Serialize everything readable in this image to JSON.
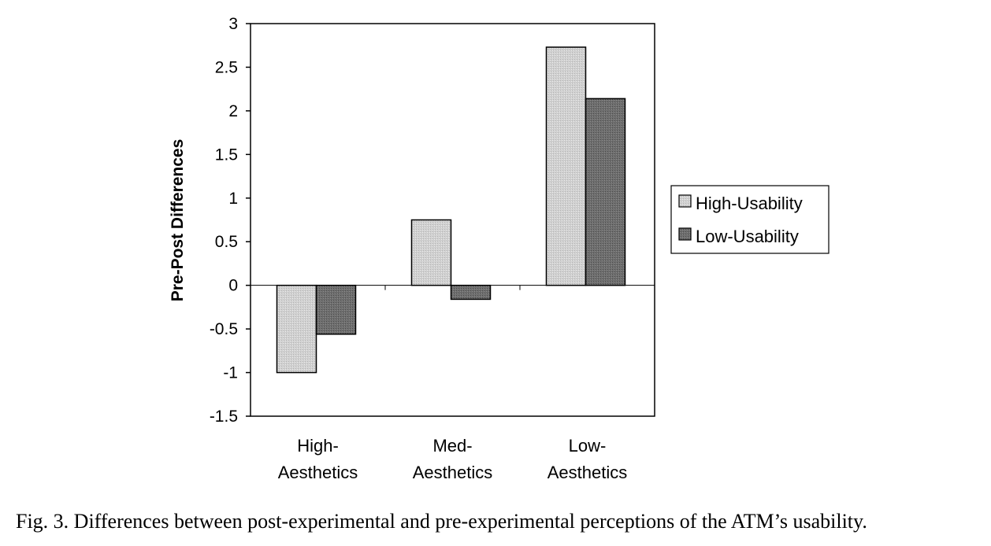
{
  "caption": "Fig. 3. Differences between post-experimental and pre-experimental perceptions of the ATM’s usability.",
  "chart_data": {
    "type": "bar",
    "categories": [
      [
        "High-",
        "Aesthetics"
      ],
      [
        "Med-",
        "Aesthetics"
      ],
      [
        "Low-",
        "Aesthetics"
      ]
    ],
    "series": [
      {
        "name": "High-Usability",
        "values": [
          -1.0,
          0.75,
          2.73
        ],
        "color": "#d0d0d0"
      },
      {
        "name": "Low-Usability",
        "values": [
          -0.56,
          -0.16,
          2.14
        ],
        "color": "#6e6e6e"
      }
    ],
    "ylabel": "Pre-Post Differences",
    "xlabel": "",
    "ylim": [
      -1.5,
      3
    ],
    "yticks": [
      "3",
      "2.5",
      "2",
      "1.5",
      "1",
      "0.5",
      "0",
      "-0.5",
      "-1",
      "-1.5"
    ],
    "ytick_values": [
      3,
      2.5,
      2,
      1.5,
      1,
      0.5,
      0,
      -0.5,
      -1,
      -1.5
    ],
    "legend_position": "right",
    "grid": false
  }
}
